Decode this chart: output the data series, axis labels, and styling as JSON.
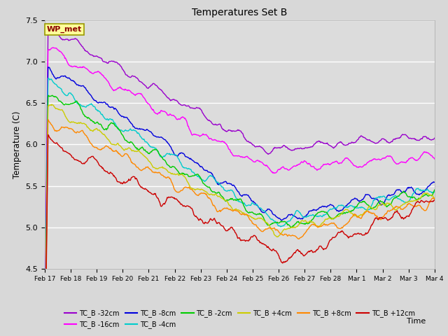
{
  "title": "Temperatures Set B",
  "xlabel": "Time",
  "ylabel": "Temperature (C)",
  "ylim": [
    4.5,
    7.5
  ],
  "annotation_text": "WP_met",
  "annotation_box_color": "#FFFF99",
  "annotation_text_color": "#8B0000",
  "series_labels": [
    "TC_B -32cm",
    "TC_B -16cm",
    "TC_B -8cm",
    "TC_B -4cm",
    "TC_B -2cm",
    "TC_B +4cm",
    "TC_B +8cm",
    "TC_B +12cm"
  ],
  "series_colors": [
    "#9900CC",
    "#FF00FF",
    "#0000DD",
    "#00CCCC",
    "#00CC00",
    "#CCCC00",
    "#FF8800",
    "#CC0000"
  ],
  "xtick_labels": [
    "Feb 17",
    "Feb 18",
    "Feb 19",
    "Feb 20",
    "Feb 21",
    "Feb 22",
    "Feb 23",
    "Feb 24",
    "Feb 25",
    "Feb 26",
    "Feb 27",
    "Feb 28",
    "Mar 1",
    "Mar 2",
    "Mar 3",
    "Mar 4"
  ],
  "background_color": "#D8D8D8",
  "plot_bg_color": "#DCDCDC",
  "grid_color": "#FFFFFF"
}
